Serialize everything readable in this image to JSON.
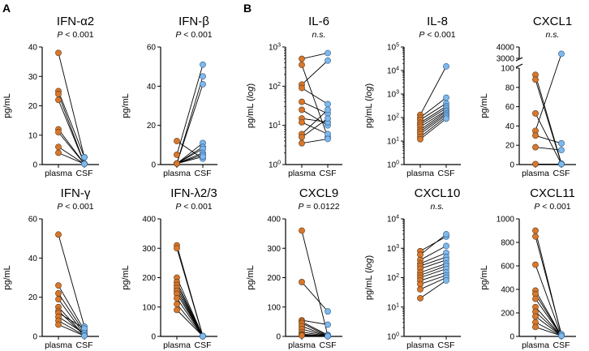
{
  "panel_letters": [
    "A",
    "B"
  ],
  "colors": {
    "plasma": "#D9772B",
    "csf": "#7EB8EC",
    "line": "#000000"
  },
  "chart_data": [
    {
      "type": "scatter",
      "title": "IFN-α2",
      "subtitle": "P < 0.001",
      "ylabel": "pg/mL",
      "scale": "linear",
      "ylim": [
        0,
        40
      ],
      "yticks": [
        0,
        10,
        20,
        30,
        40
      ],
      "ytick_labels": [
        "0",
        "10",
        "20",
        "30",
        "40"
      ],
      "categories": [
        "plasma",
        "CSF"
      ],
      "plasma": [
        38,
        25,
        24,
        22,
        12,
        11,
        6,
        4
      ],
      "csf": [
        2.5,
        2.5,
        0.3,
        0.3,
        0.3,
        0.2,
        0.2,
        0.2
      ]
    },
    {
      "type": "scatter",
      "title": "IFN-β",
      "subtitle": "P < 0.001",
      "ylabel": "pg/mL",
      "scale": "linear",
      "ylim": [
        0,
        60
      ],
      "yticks": [
        0,
        20,
        40,
        60
      ],
      "ytick_labels": [
        "0",
        "20",
        "40",
        "60"
      ],
      "categories": [
        "plasma",
        "CSF"
      ],
      "plasma": [
        12,
        5,
        0.5,
        0.5,
        0.5,
        0.5,
        0.5,
        0.5,
        0.5,
        0.5
      ],
      "csf": [
        3,
        51,
        41,
        45,
        11,
        9,
        8,
        6,
        5,
        4
      ]
    },
    {
      "type": "scatter",
      "title": "IL-6",
      "subtitle": "n.s.",
      "ylabel": "pg/mL (log)",
      "scale": "log",
      "ylim": [
        1,
        1000
      ],
      "yticks": [
        1,
        10,
        100,
        1000
      ],
      "ytick_labels": [
        "10^0",
        "10^1",
        "10^2",
        "10^3"
      ],
      "categories": [
        "plasma",
        "CSF"
      ],
      "plasma": [
        500,
        350,
        110,
        90,
        40,
        25,
        15,
        12,
        6,
        5,
        3.5
      ],
      "csf": [
        700,
        5,
        450,
        35,
        20,
        10,
        12,
        6,
        25,
        15,
        4.5
      ]
    },
    {
      "type": "scatter",
      "title": "IL-8",
      "subtitle": "P < 0.001",
      "ylabel": "pg/mL (log)",
      "scale": "log",
      "ylim": [
        1,
        100000
      ],
      "yticks": [
        1,
        10,
        100,
        1000,
        10000,
        100000
      ],
      "ytick_labels": [
        "10^0",
        "10^1",
        "10^2",
        "10^3",
        "10^4",
        "10^5"
      ],
      "categories": [
        "plasma",
        "CSF"
      ],
      "plasma": [
        130,
        100,
        80,
        60,
        50,
        40,
        30,
        25,
        20,
        15,
        12
      ],
      "csf": [
        15000,
        700,
        400,
        300,
        250,
        200,
        180,
        150,
        130,
        110,
        90
      ]
    },
    {
      "type": "scatter",
      "title": "CXCL1",
      "subtitle": "n.s.",
      "ylabel": "pg/mL",
      "scale": "broken",
      "ylim": [
        0,
        100
      ],
      "upper_ylim": [
        3000,
        4000
      ],
      "yticks": [
        0,
        20,
        40,
        60,
        80,
        100
      ],
      "ytick_labels": [
        "0",
        "20",
        "40",
        "60",
        "80",
        "100"
      ],
      "upper_yticks": [
        3000,
        4000
      ],
      "upper_ytick_labels": [
        "3000",
        "4000"
      ],
      "categories": [
        "plasma",
        "CSF"
      ],
      "plasma": [
        93,
        88,
        53,
        35,
        30,
        18,
        0.5
      ],
      "csf": [
        1,
        0.5,
        0.5,
        3400,
        22,
        15,
        0.5
      ]
    },
    {
      "type": "scatter",
      "title": "IFN-γ",
      "subtitle": "P < 0.001",
      "ylabel": "pg/mL",
      "scale": "linear",
      "ylim": [
        0,
        60
      ],
      "yticks": [
        0,
        20,
        40,
        60
      ],
      "ytick_labels": [
        "0",
        "20",
        "40",
        "60"
      ],
      "categories": [
        "plasma",
        "CSF"
      ],
      "plasma": [
        52,
        26,
        22,
        19,
        15,
        13,
        12,
        10,
        8,
        6
      ],
      "csf": [
        5,
        3,
        2,
        1,
        0.5,
        0.5,
        4,
        1.5,
        0.5,
        0.3
      ]
    },
    {
      "type": "scatter",
      "title": "IFN-λ2/3",
      "subtitle": "P < 0.001",
      "ylabel": "pg/mL",
      "scale": "linear",
      "ylim": [
        0,
        400
      ],
      "yticks": [
        0,
        100,
        200,
        300,
        400
      ],
      "ytick_labels": [
        "0",
        "100",
        "200",
        "300",
        "400"
      ],
      "categories": [
        "plasma",
        "CSF"
      ],
      "plasma": [
        310,
        300,
        200,
        185,
        175,
        165,
        155,
        145,
        130,
        110,
        90
      ],
      "csf": [
        1,
        1,
        1,
        1,
        1,
        1,
        1,
        1,
        1,
        1,
        1
      ]
    },
    {
      "type": "scatter",
      "title": "CXCL9",
      "subtitle": "P = 0.0122",
      "ylabel": "pg/mL",
      "scale": "linear",
      "ylim": [
        0,
        400
      ],
      "yticks": [
        0,
        100,
        200,
        300,
        400
      ],
      "ytick_labels": [
        "0",
        "100",
        "200",
        "300",
        "400"
      ],
      "categories": [
        "plasma",
        "CSF"
      ],
      "plasma": [
        360,
        185,
        55,
        50,
        45,
        35,
        25,
        15,
        8,
        5,
        3
      ],
      "csf": [
        3,
        85,
        40,
        5,
        2,
        1,
        1,
        1,
        1,
        1,
        1
      ]
    },
    {
      "type": "scatter",
      "title": "CXCL10",
      "subtitle": "n.s.",
      "ylabel": "pg/mL (log)",
      "scale": "log",
      "ylim": [
        1,
        10000
      ],
      "yticks": [
        1,
        10,
        100,
        1000,
        10000
      ],
      "ytick_labels": [
        "10^0",
        "10^1",
        "10^2",
        "10^3",
        "10^4"
      ],
      "categories": [
        "plasma",
        "CSF"
      ],
      "plasma": [
        800,
        600,
        400,
        300,
        250,
        200,
        150,
        120,
        100,
        80,
        60,
        40,
        20
      ],
      "csf": [
        2500,
        3000,
        1200,
        700,
        500,
        400,
        300,
        250,
        200,
        150,
        120,
        100,
        80
      ]
    },
    {
      "type": "scatter",
      "title": "CXCL11",
      "subtitle": "P < 0.001",
      "ylabel": "pg/mL",
      "scale": "linear",
      "ylim": [
        0,
        1000
      ],
      "yticks": [
        0,
        200,
        400,
        600,
        800,
        1000
      ],
      "ytick_labels": [
        "0",
        "200",
        "400",
        "600",
        "800",
        "1000"
      ],
      "categories": [
        "plasma",
        "CSF"
      ],
      "plasma": [
        900,
        850,
        610,
        390,
        360,
        320,
        250,
        210,
        170,
        120,
        80
      ],
      "csf": [
        10,
        20,
        5,
        5,
        5,
        5,
        5,
        5,
        5,
        5,
        5
      ]
    }
  ]
}
